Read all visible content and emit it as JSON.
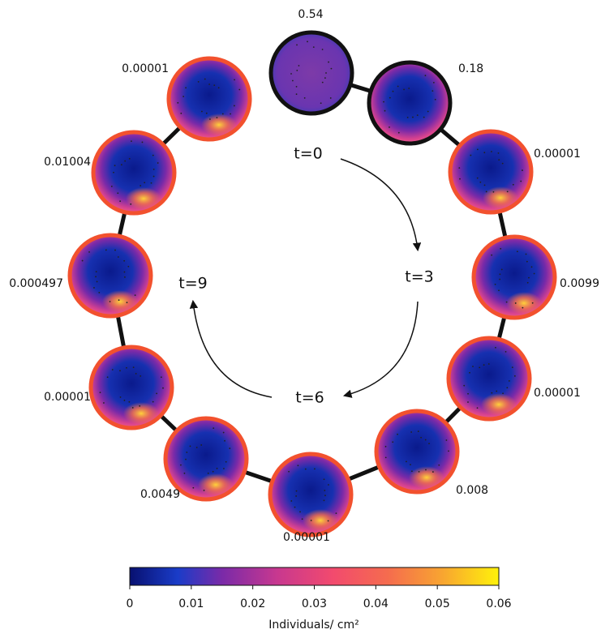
{
  "nodes": [
    {
      "label": "0.54",
      "border": "#111111"
    },
    {
      "label": "0.18",
      "border": "#111111"
    },
    {
      "label": "0.00001",
      "border": "#f2512e"
    },
    {
      "label": "0.0099",
      "border": "#f2512e"
    },
    {
      "label": "0.00001",
      "border": "#f2512e"
    },
    {
      "label": "0.008",
      "border": "#f2512e"
    },
    {
      "label": "0.00001",
      "border": "#f2512e"
    },
    {
      "label": "0.0049",
      "border": "#f2512e"
    },
    {
      "label": "0.00001",
      "border": "#f2512e"
    },
    {
      "label": "0.000497",
      "border": "#f2512e"
    },
    {
      "label": "0.01004",
      "border": "#f2512e"
    },
    {
      "label": "0.00001",
      "border": "#f2512e"
    }
  ],
  "times": [
    "t=0",
    "t=3",
    "t=6",
    "t=9"
  ],
  "colorbar": {
    "label": "Individuals/ cm²",
    "range": [
      0,
      0.06
    ],
    "ticks": [
      0,
      0.01,
      0.02,
      0.03,
      0.04,
      0.05,
      0.06
    ]
  }
}
